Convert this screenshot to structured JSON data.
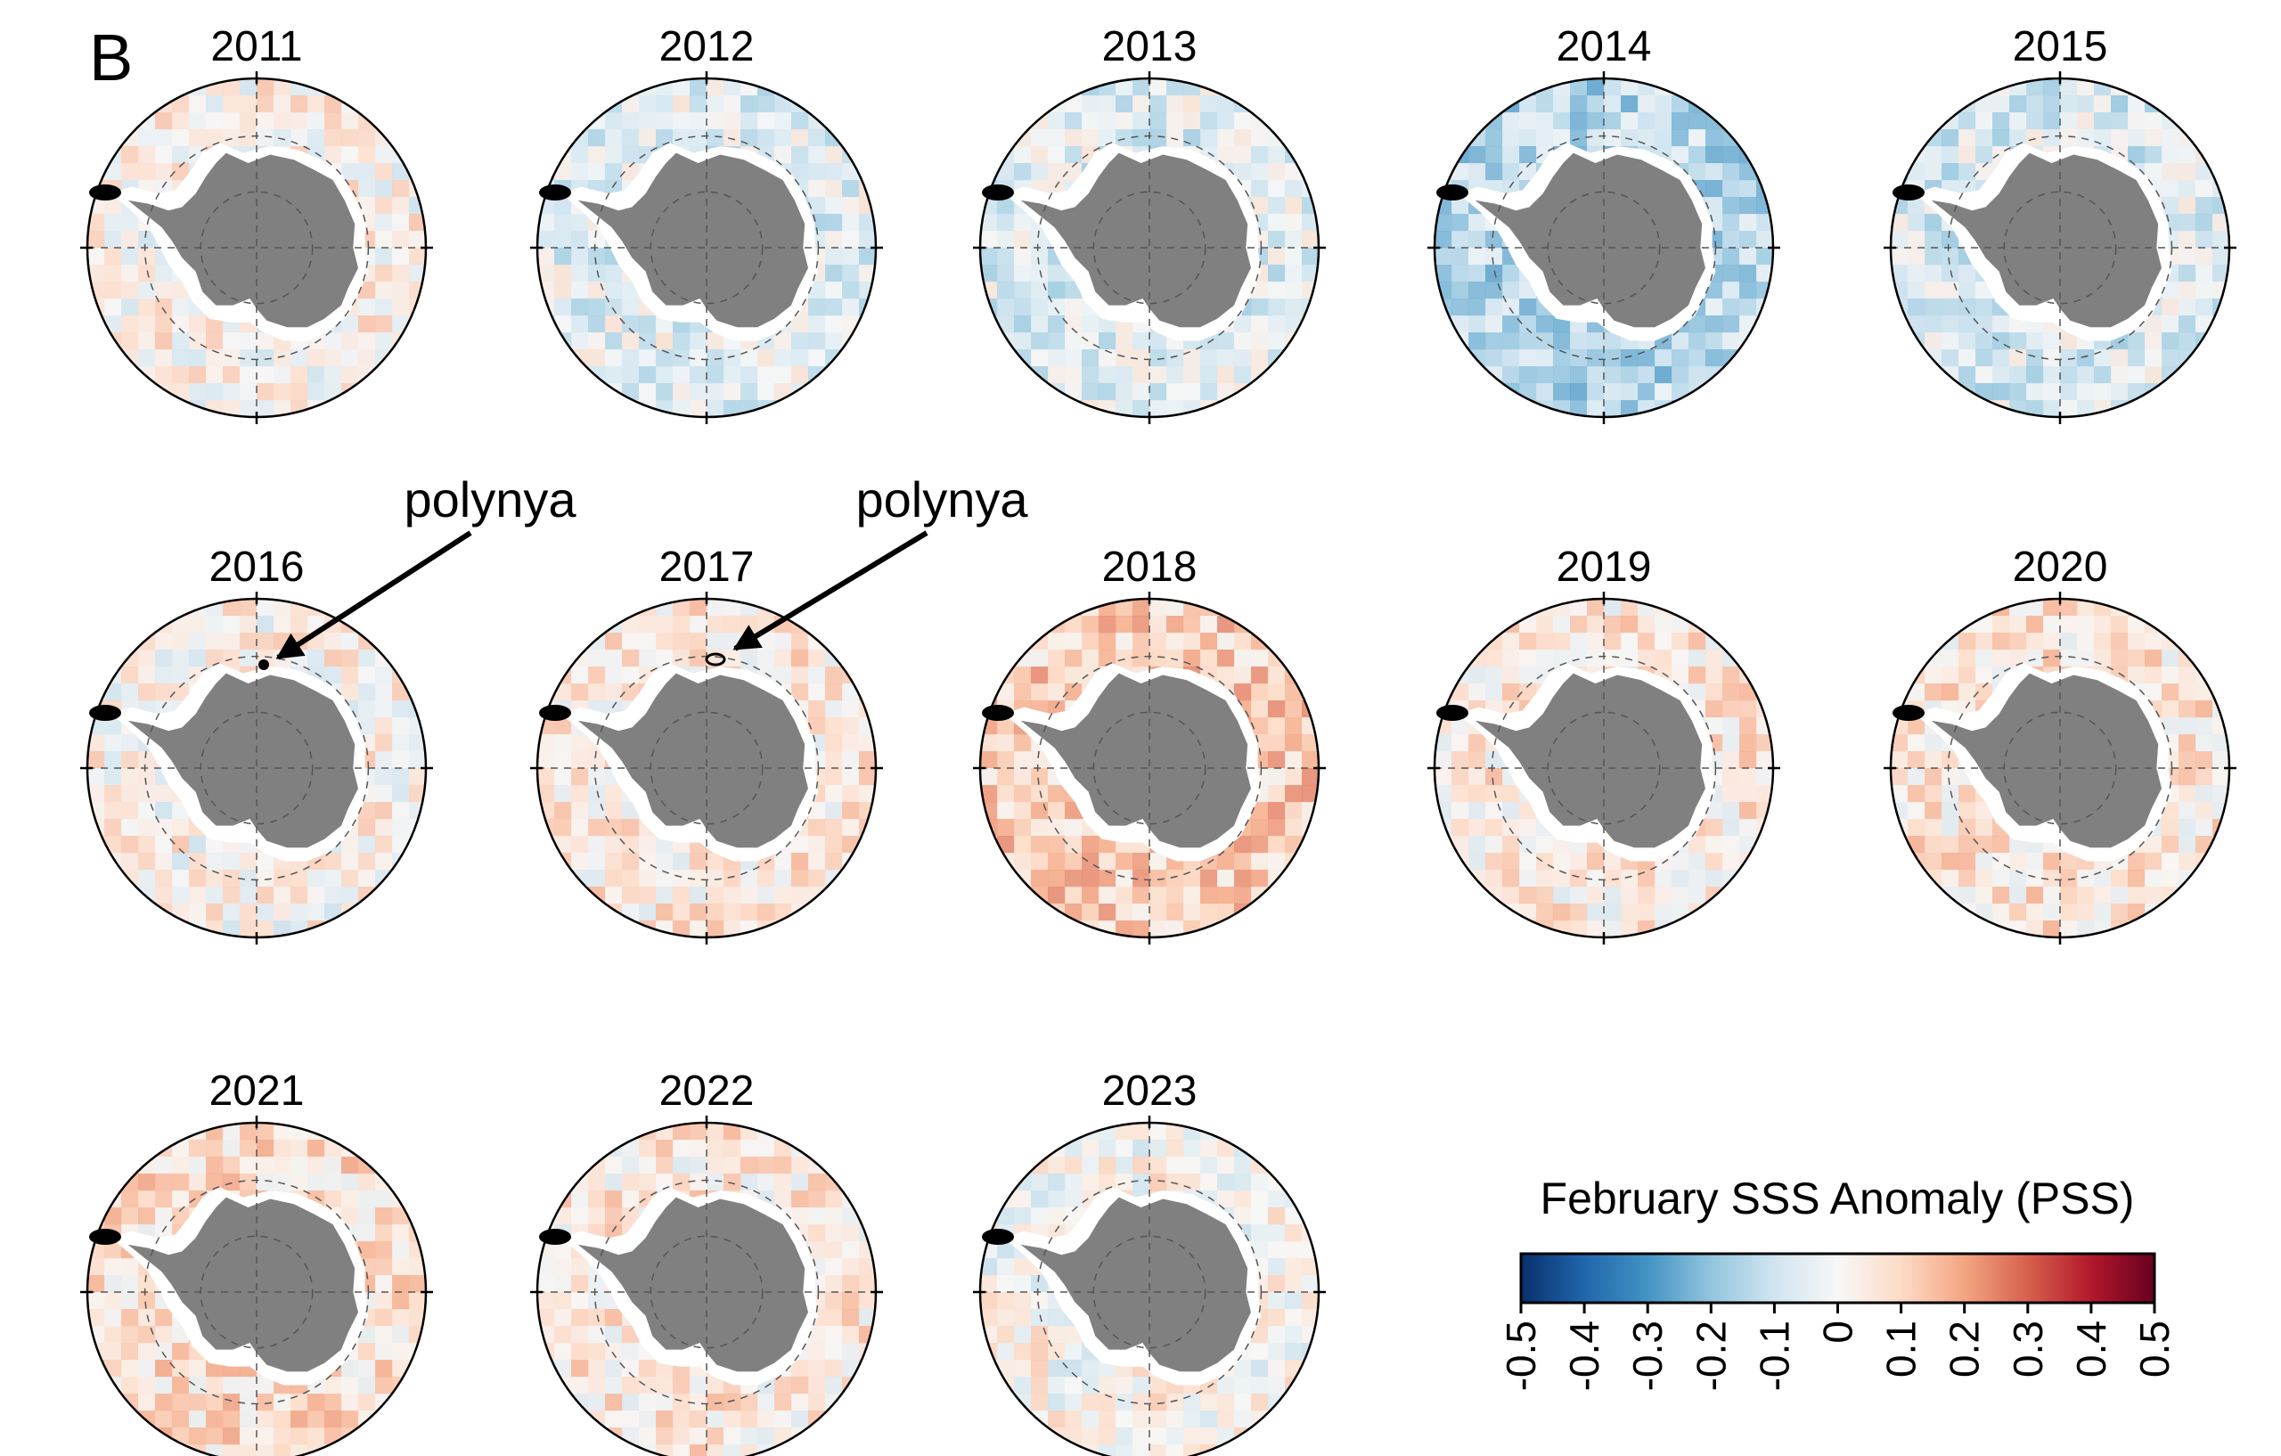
{
  "figure": {
    "panel_letter": "B",
    "annotations": [
      {
        "text": "polynya",
        "target_year": "2016"
      },
      {
        "text": "polynya",
        "target_year": "2017"
      }
    ],
    "colorbar": {
      "title": "February SSS Anomaly (PSS)",
      "range": [
        -0.5,
        0.5
      ],
      "colormap": "RdBu_r",
      "ticks": [
        "-0.5",
        "-0.4",
        "-0.3",
        "-0.2",
        "-0.1",
        "0",
        "0.1",
        "0.2",
        "0.3",
        "0.4",
        "0.5"
      ],
      "colors": [
        "#08306b",
        "#2166ac",
        "#4393c3",
        "#92c5de",
        "#d1e5f0",
        "#f7f7f7",
        "#fddbc7",
        "#f4a582",
        "#d6604d",
        "#b2182b",
        "#67001f"
      ]
    },
    "land_color": "#808080",
    "ice_color": "#ffffff",
    "maps": [
      {
        "year": "2011",
        "mean": 0.02,
        "seed": 11
      },
      {
        "year": "2012",
        "mean": -0.05,
        "seed": 12
      },
      {
        "year": "2013",
        "mean": -0.06,
        "seed": 13
      },
      {
        "year": "2014",
        "mean": -0.15,
        "seed": 14
      },
      {
        "year": "2015",
        "mean": -0.07,
        "seed": 15
      },
      {
        "year": "2016",
        "mean": 0.02,
        "seed": 16
      },
      {
        "year": "2017",
        "mean": 0.05,
        "seed": 17
      },
      {
        "year": "2018",
        "mean": 0.12,
        "seed": 18
      },
      {
        "year": "2019",
        "mean": 0.05,
        "seed": 19
      },
      {
        "year": "2020",
        "mean": 0.06,
        "seed": 20
      },
      {
        "year": "2021",
        "mean": 0.08,
        "seed": 21
      },
      {
        "year": "2022",
        "mean": 0.05,
        "seed": 22
      },
      {
        "year": "2023",
        "mean": 0.01,
        "seed": 23
      }
    ]
  }
}
